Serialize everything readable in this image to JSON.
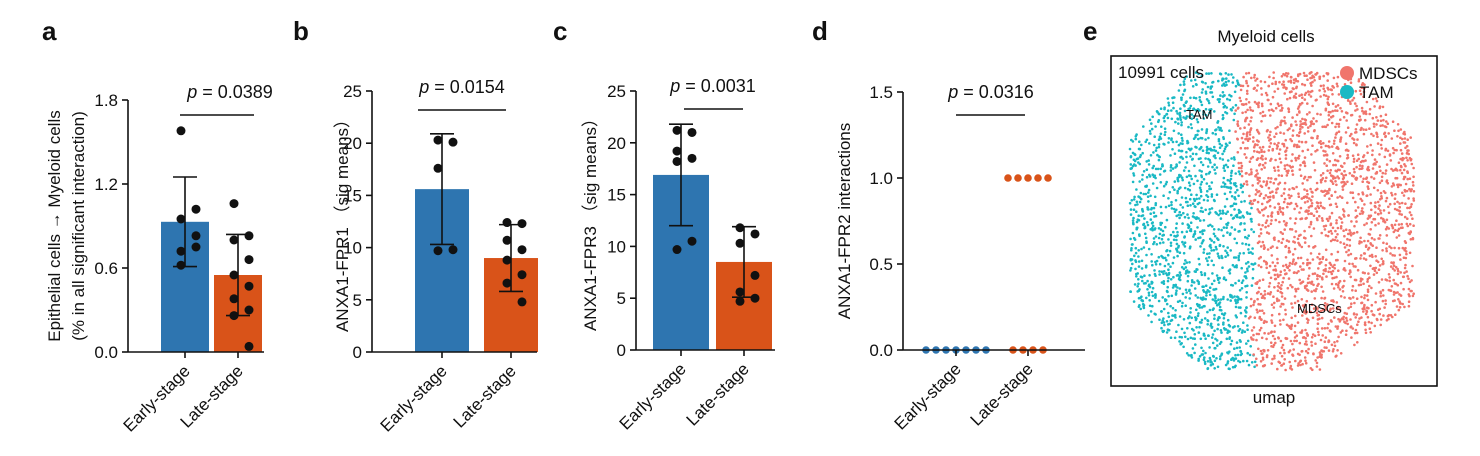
{
  "panels": {
    "a": "a",
    "b": "b",
    "c": "c",
    "d": "d",
    "e": "e"
  },
  "colors": {
    "early": "#2e75b0",
    "late": "#d95319",
    "mdscs": "#f0756c",
    "tam": "#1ab9c4",
    "axis": "#111111"
  },
  "chart_data": [
    {
      "id": "a",
      "type": "bar",
      "ylabel": "Epithelial cells → Myeloid cells",
      "ylabel2": "(% in all significant interaction)",
      "categories": [
        "Early-stage",
        "Late-stage"
      ],
      "values": [
        0.93,
        0.55
      ],
      "errors": [
        [
          0.61,
          1.25
        ],
        [
          0.26,
          0.84
        ]
      ],
      "points": [
        [
          1.58,
          1.02,
          0.95,
          0.83,
          0.72,
          0.75,
          0.62
        ],
        [
          1.06,
          0.83,
          0.8,
          0.66,
          0.55,
          0.47,
          0.38,
          0.3,
          0.26,
          0.04
        ]
      ],
      "ylim": [
        0,
        1.8
      ],
      "yticks": [
        0.0,
        0.6,
        1.2,
        1.8
      ],
      "yticklabels": [
        "0.0",
        "0.6",
        "1.2",
        "1.8"
      ],
      "pvalue_p": "p",
      "pvalue": " = 0.0389"
    },
    {
      "id": "b",
      "type": "bar",
      "ylabel": "ANXA1-FPR1 （sig means）",
      "categories": [
        "Early-stage",
        "Late-stage"
      ],
      "values": [
        15.6,
        9.0
      ],
      "errors": [
        [
          10.3,
          20.9
        ],
        [
          5.8,
          12.2
        ]
      ],
      "points": [
        [
          20.3,
          20.1,
          17.6,
          9.8,
          9.7
        ],
        [
          12.4,
          12.3,
          10.7,
          9.8,
          8.8,
          7.4,
          6.6,
          4.8
        ]
      ],
      "ylim": [
        0,
        25
      ],
      "yticks": [
        0,
        5,
        10,
        15,
        20,
        25
      ],
      "yticklabels": [
        "0",
        "5",
        "10",
        "15",
        "20",
        "25"
      ],
      "pvalue_p": "p",
      "pvalue": " = 0.0154"
    },
    {
      "id": "c",
      "type": "bar",
      "ylabel": "ANXA1-FPR3 （sig means）",
      "categories": [
        "Early-stage",
        "Late-stage"
      ],
      "values": [
        16.9,
        8.5
      ],
      "errors": [
        [
          12.0,
          21.8
        ],
        [
          5.1,
          11.9
        ]
      ],
      "points": [
        [
          21.2,
          21.0,
          19.2,
          18.5,
          18.2,
          10.5,
          9.7
        ],
        [
          11.8,
          11.2,
          10.3,
          7.2,
          5.6,
          5.0,
          4.7
        ]
      ],
      "ylim": [
        0,
        25
      ],
      "yticks": [
        0,
        5,
        10,
        15,
        20,
        25
      ],
      "yticklabels": [
        "0",
        "5",
        "10",
        "15",
        "20",
        "25"
      ],
      "pvalue_p": "p",
      "pvalue": " = 0.0031"
    },
    {
      "id": "d",
      "type": "scatter",
      "ylabel": "ANXA1-FPR2 interactions",
      "categories": [
        "Early-stage",
        "Late-stage"
      ],
      "points": [
        [
          0,
          0,
          0,
          0,
          0,
          0,
          0
        ],
        [
          1,
          1,
          1,
          1,
          1,
          0,
          0,
          0,
          0
        ]
      ],
      "ylim": [
        0,
        1.5
      ],
      "yticks": [
        0.0,
        0.5,
        1.0,
        1.5
      ],
      "yticklabels": [
        "0.0",
        "0.5",
        "1.0",
        "1.5"
      ],
      "pvalue_p": "p",
      "pvalue": " = 0.0316"
    },
    {
      "id": "e",
      "type": "scatter",
      "title": "Myeloid cells",
      "xlabel": "umap",
      "cell_count": "10991 cells",
      "legend": [
        "MDSCs",
        "TAM"
      ],
      "annotations": [
        "TAM",
        "MDSCs"
      ]
    }
  ]
}
